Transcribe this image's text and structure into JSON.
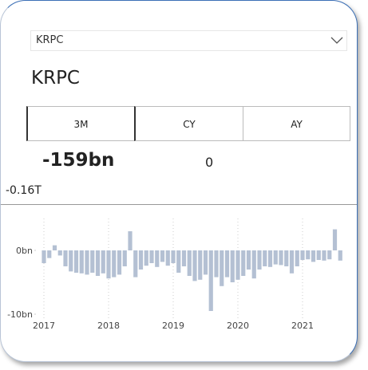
{
  "dropdown": "KRPC",
  "title": "KRPC",
  "buttons": [
    "3M",
    "CY",
    "AY"
  ],
  "kpi": "-159bn",
  "kpi_secondary": "0",
  "total": "-0.16T",
  "chart_data": {
    "type": "bar",
    "color": "#b4c0d3",
    "grid": true,
    "categories": [
      "2017",
      null,
      null,
      null,
      null,
      null,
      null,
      null,
      null,
      null,
      null,
      null,
      "2018",
      null,
      null,
      null,
      null,
      null,
      null,
      null,
      null,
      null,
      null,
      null,
      "2019",
      null,
      null,
      null,
      null,
      null,
      null,
      null,
      null,
      null,
      null,
      null,
      "2020",
      null,
      null,
      null,
      null,
      null,
      null,
      null,
      null,
      null,
      null,
      null,
      "2021",
      null,
      null,
      null,
      null,
      null,
      null,
      null
    ],
    "values": [
      -2,
      -1.2,
      0.8,
      -0.8,
      -2.5,
      -3.3,
      -3.5,
      -3.6,
      -3.8,
      -3.5,
      -4,
      -3.6,
      -4.4,
      -4.2,
      -3.8,
      -2.5,
      3,
      -4.2,
      -3,
      -2.4,
      -2,
      -2.6,
      -1.8,
      -2.4,
      -2,
      -3.5,
      -2.5,
      -4,
      -4.8,
      -4.6,
      -3.8,
      -9.5,
      -4.2,
      -5.6,
      -4.2,
      -5,
      -4.6,
      -4,
      -3,
      -4.4,
      -3,
      -2.5,
      -2.6,
      -2.2,
      -2.3,
      -2.5,
      -3.6,
      -2.5,
      -1.5,
      -1.4,
      -1.8,
      -1.5,
      -1.6,
      -1.4,
      3.3,
      -1.6
    ],
    "ylim": [
      -10,
      5
    ],
    "yticks": [
      {
        "value": 0,
        "label": "0bn"
      },
      {
        "value": -10,
        "label": "-10bn"
      }
    ]
  }
}
